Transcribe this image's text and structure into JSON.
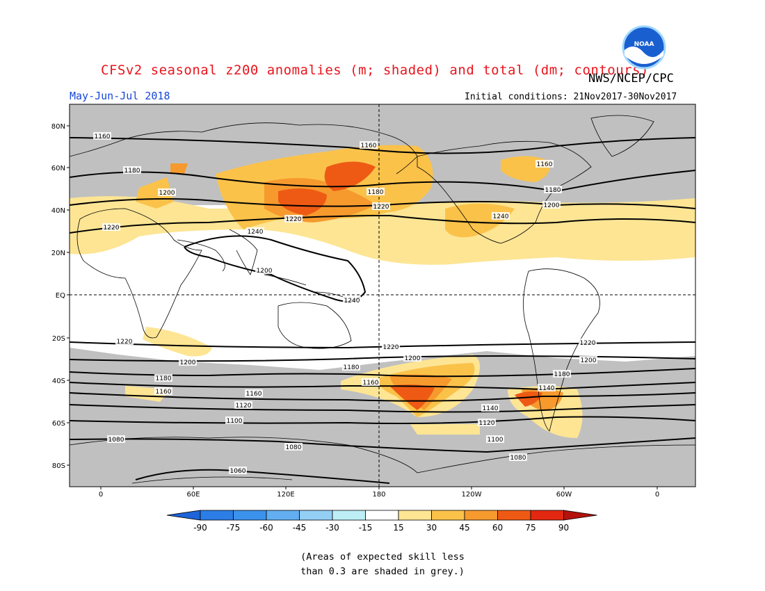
{
  "header": {
    "title": "CFSv2 seasonal z200 anomalies (m; shaded) and total (dm; contours)",
    "agency": "NWS/NCEP/CPC",
    "period": "May-Jun-Jul 2018",
    "initial_conditions": "Initial conditions: 21Nov2017-30Nov2017"
  },
  "logo": {
    "text": "NOAA",
    "ring_color": "#1a5fd0",
    "bird_color": "#ffffff"
  },
  "axes": {
    "lat_labels": [
      "80N",
      "60N",
      "40N",
      "20N",
      "EQ",
      "20S",
      "40S",
      "60S",
      "80S"
    ],
    "lon_labels": [
      "0",
      "60E",
      "120E",
      "180",
      "120W",
      "60W",
      "0"
    ]
  },
  "contour_labels": [
    "1160",
    "1160",
    "1180",
    "1160",
    "1200",
    "1180",
    "1180",
    "1220",
    "1200",
    "1220",
    "1220",
    "1240",
    "1240",
    "1200",
    "1240",
    "1220",
    "1220",
    "1220",
    "1200",
    "1200",
    "1200",
    "1180",
    "1180",
    "1180",
    "1160",
    "1160",
    "1140",
    "1160",
    "1120",
    "1140",
    "1100",
    "1120",
    "1080",
    "1100",
    "1080",
    "1080",
    "1060"
  ],
  "colorbar": {
    "ticks": [
      "-90",
      "-75",
      "-60",
      "-45",
      "-30",
      "-15",
      "15",
      "30",
      "45",
      "60",
      "75",
      "90"
    ],
    "colors": [
      "#1e64d8",
      "#2c7ee6",
      "#3b92ec",
      "#62aef0",
      "#93cef5",
      "#bdeef6",
      "#ffffff",
      "#fde594",
      "#fbc24a",
      "#f69a2e",
      "#ee5a14",
      "#e22810",
      "#b4120c"
    ]
  },
  "note": "(Areas of expected skill less\nthan 0.3 are shaded in grey.)"
}
